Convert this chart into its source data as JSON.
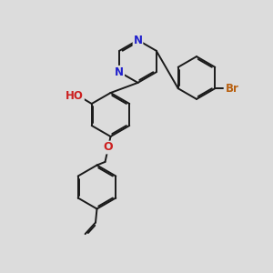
{
  "bg_color": "#dcdcdc",
  "bond_color": "#1a1a1a",
  "bond_width": 1.4,
  "dbo": 0.055,
  "atom_colors": {
    "N": "#2020cc",
    "O": "#cc2020",
    "Br": "#b86010",
    "C": "#1a1a1a"
  },
  "font_size": 8.5,
  "fig_size": [
    3.0,
    3.0
  ],
  "dpi": 100,
  "xlim": [
    0,
    10
  ],
  "ylim": [
    0,
    10
  ]
}
